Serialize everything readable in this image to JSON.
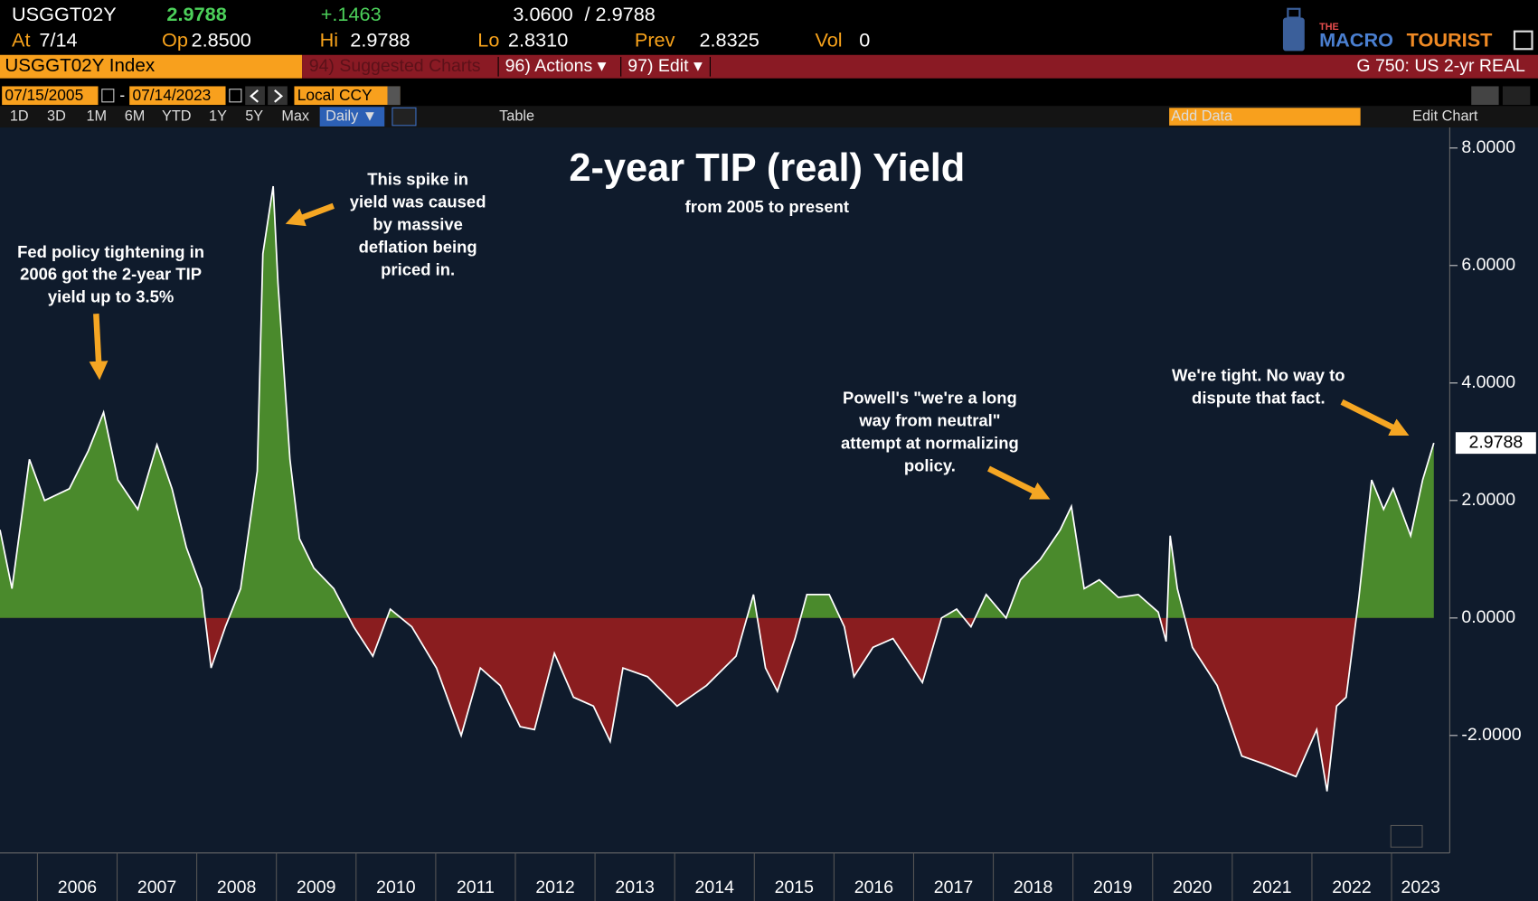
{
  "header": {
    "ticker": "USGGT02Y",
    "last": "2.9788",
    "change": "+.1463",
    "range_high": "3.0600",
    "range_sep": "/",
    "range_low": "2.9788",
    "at_label": "At",
    "at": "7/14",
    "open_label": "Op",
    "open": "2.8500",
    "high_label": "Hi",
    "high": "2.9788",
    "low_label": "Lo",
    "low": "2.8310",
    "prev_label": "Prev",
    "prev": "2.8325",
    "vol_label": "Vol",
    "vol": "0",
    "logo": {
      "the": "THE",
      "macro": "MACRO",
      "tourist": "TOURIST"
    }
  },
  "menu": {
    "security": "USGGT02Y Index",
    "suggested": "94) Suggested Charts",
    "actions": "96) Actions ▾",
    "edit": "97) Edit ▾",
    "function": "G 750: US 2-yr REAL"
  },
  "controls": {
    "start_date": "07/15/2005",
    "dash": "-",
    "end_date": "07/14/2023",
    "currency": "Local CCY",
    "periods": [
      "1D",
      "3D",
      "1M",
      "6M",
      "YTD",
      "1Y",
      "5Y",
      "Max"
    ],
    "frequency": "Daily ▼",
    "table": "Table",
    "add_data": "Add Data",
    "edit_chart": "Edit Chart"
  },
  "chart_data": {
    "type": "area",
    "title": "2-year TIP (real) Yield",
    "subtitle": "from 2005 to present",
    "x": [
      2005.53,
      2005.68,
      2005.9,
      2006.09,
      2006.4,
      2006.64,
      2006.83,
      2007.01,
      2007.26,
      2007.5,
      2007.69,
      2007.87,
      2008.06,
      2008.18,
      2008.36,
      2008.55,
      2008.76,
      2008.83,
      2008.96,
      2009.02,
      2009.17,
      2009.29,
      2009.47,
      2009.72,
      2009.97,
      2010.21,
      2010.43,
      2010.7,
      2011.01,
      2011.32,
      2011.56,
      2011.81,
      2012.06,
      2012.24,
      2012.49,
      2012.73,
      2012.98,
      2013.19,
      2013.35,
      2013.66,
      2014.03,
      2014.4,
      2014.77,
      2014.99,
      2015.14,
      2015.29,
      2015.51,
      2015.66,
      2015.94,
      2016.13,
      2016.25,
      2016.49,
      2016.74,
      2017.11,
      2017.35,
      2017.54,
      2017.72,
      2017.91,
      2018.16,
      2018.34,
      2018.59,
      2018.84,
      2018.98,
      2019.14,
      2019.33,
      2019.57,
      2019.82,
      2020.07,
      2020.17,
      2020.22,
      2020.31,
      2020.5,
      2020.81,
      2021.12,
      2021.43,
      2021.8,
      2022.06,
      2022.19,
      2022.31,
      2022.43,
      2022.59,
      2022.75,
      2022.9,
      2023.02,
      2023.24,
      2023.39,
      2023.53
    ],
    "values": [
      1.5,
      0.5,
      2.7,
      2.0,
      2.2,
      2.85,
      3.5,
      2.35,
      1.85,
      2.95,
      2.2,
      1.2,
      0.5,
      -0.85,
      -0.15,
      0.5,
      2.5,
      6.2,
      7.35,
      5.7,
      2.7,
      1.35,
      0.85,
      0.5,
      -0.15,
      -0.65,
      0.15,
      -0.15,
      -0.85,
      -2.0,
      -0.85,
      -1.15,
      -1.85,
      -1.9,
      -0.6,
      -1.35,
      -1.5,
      -2.1,
      -0.85,
      -1.0,
      -1.5,
      -1.15,
      -0.65,
      0.4,
      -0.85,
      -1.25,
      -0.35,
      0.4,
      0.4,
      -0.15,
      -1.0,
      -0.5,
      -0.35,
      -1.1,
      0.0,
      0.15,
      -0.15,
      0.4,
      0.0,
      0.65,
      1.0,
      1.5,
      1.9,
      0.5,
      0.65,
      0.35,
      0.4,
      0.1,
      -0.4,
      1.4,
      0.5,
      -0.5,
      -1.15,
      -2.35,
      -2.5,
      -2.7,
      -1.9,
      -2.95,
      -1.5,
      -1.35,
      0.35,
      2.35,
      1.85,
      2.2,
      1.4,
      2.35,
      2.9788
    ],
    "line_color": "#ffffff",
    "positive_color": "#4a8a2c",
    "negative_color": "#8a1d1f",
    "xlim": [
      2005.53,
      2023.73
    ],
    "ylim": [
      -4.0,
      8.35
    ],
    "xticks": [
      2006,
      2007,
      2008,
      2009,
      2010,
      2011,
      2012,
      2013,
      2014,
      2015,
      2016,
      2017,
      2018,
      2019,
      2020,
      2021,
      2022,
      2023
    ],
    "yticks": [
      {
        "value": -2,
        "label": "-2.0000"
      },
      {
        "value": 0,
        "label": "0.0000"
      },
      {
        "value": 2,
        "label": "2.0000"
      },
      {
        "value": 4,
        "label": "4.0000"
      },
      {
        "value": 6,
        "label": "6.0000"
      },
      {
        "value": 8,
        "label": "8.0000"
      }
    ],
    "annotations": [
      {
        "lines": [
          "Fed policy tightening in",
          "2006 got the 2-year TIP",
          "yield up to 3.5%"
        ]
      },
      {
        "lines": [
          "This spike in",
          "yield was caused",
          "by massive",
          "deflation being",
          "priced in."
        ]
      },
      {
        "lines": [
          "Powell's \"we're a long",
          "way from neutral\"",
          "attempt at normalizing",
          "policy."
        ]
      },
      {
        "lines": [
          "We're tight. No way to",
          "dispute that fact."
        ]
      }
    ]
  }
}
